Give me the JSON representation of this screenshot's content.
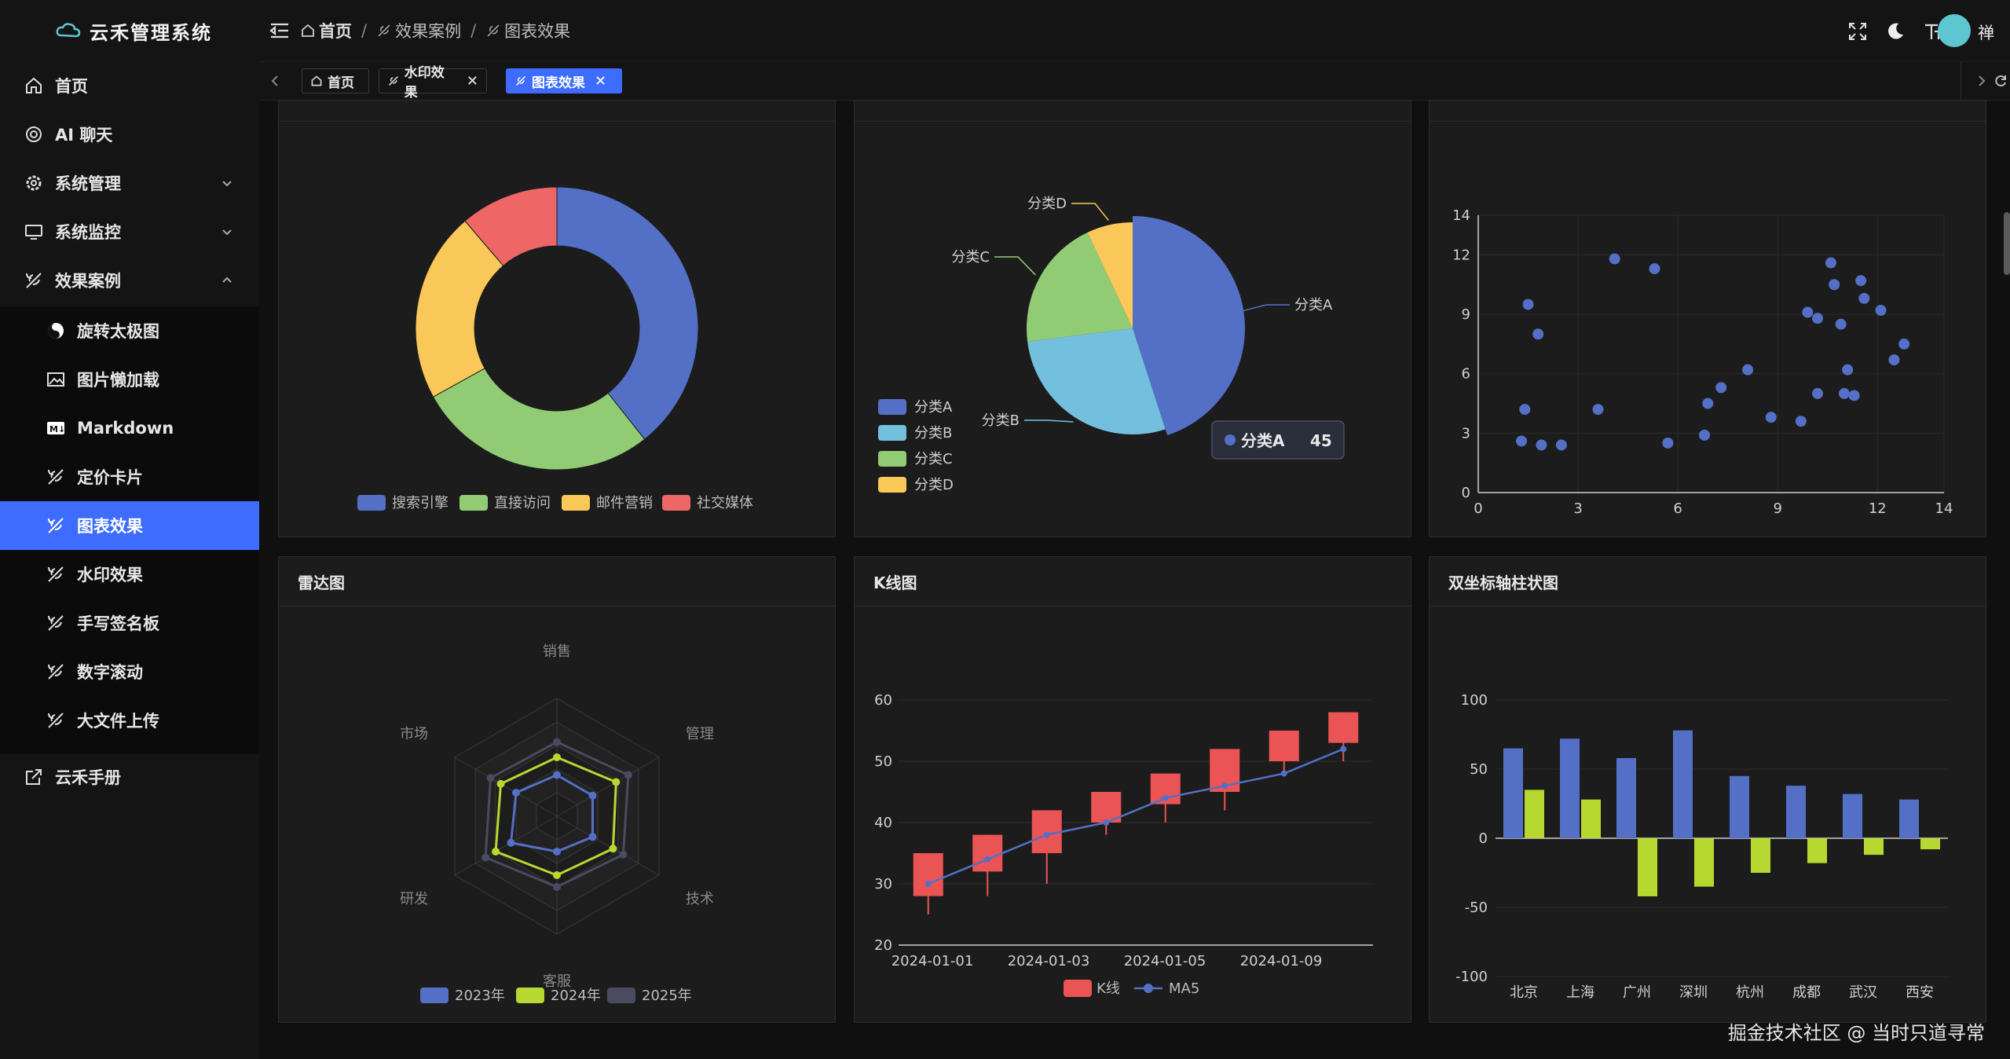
{
  "app": {
    "title": "云禾管理系统",
    "user": "禅"
  },
  "breadcrumb": [
    "首页",
    "效果案例",
    "图表效果"
  ],
  "sidebar": {
    "items": [
      {
        "label": "首页",
        "icon": "home-icon"
      },
      {
        "label": "AI 聊天",
        "icon": "ai-icon"
      },
      {
        "label": "系统管理",
        "icon": "gear-icon"
      },
      {
        "label": "系统监控",
        "icon": "monitor-icon"
      },
      {
        "label": "效果案例",
        "icon": "leaf-icon"
      },
      {
        "label": "旋转太极图",
        "icon": "taiji-icon"
      },
      {
        "label": "图片懒加载",
        "icon": "image-icon"
      },
      {
        "label": "Markdown",
        "icon": "markdown-icon"
      },
      {
        "label": "定价卡片",
        "icon": "leaf-icon"
      },
      {
        "label": "图表效果",
        "icon": "leaf-icon"
      },
      {
        "label": "水印效果",
        "icon": "leaf-icon"
      },
      {
        "label": "手写签名板",
        "icon": "leaf-icon"
      },
      {
        "label": "数字滚动",
        "icon": "leaf-icon"
      },
      {
        "label": "大文件上传",
        "icon": "leaf-icon"
      },
      {
        "label": "云禾手册",
        "icon": "external-link-icon"
      }
    ]
  },
  "tabs": [
    "首页",
    "水印效果",
    "图表效果"
  ],
  "cards": {
    "radar_title": "雷达图",
    "kline_title": "K线图",
    "dualbar_title": "双坐标轴柱状图"
  },
  "charts": {
    "donut": {
      "type": "pie",
      "categories": [
        "搜索引擎",
        "直接访问",
        "邮件营销",
        "社交媒体"
      ],
      "values": [
        1048,
        735,
        580,
        300
      ],
      "colors": [
        "#5470c6",
        "#91cc75",
        "#fac858",
        "#ee6666"
      ]
    },
    "pie": {
      "type": "pie",
      "categories": [
        "分类A",
        "分类B",
        "分类C",
        "分类D"
      ],
      "values": [
        45,
        28,
        20,
        7
      ],
      "colors": [
        "#5470c6",
        "#73c0de",
        "#91cc75",
        "#fac858"
      ],
      "tooltip": {
        "label": "分类A",
        "value": "45"
      }
    },
    "scatter": {
      "type": "scatter",
      "xlim": [
        0,
        14
      ],
      "ylim": [
        0,
        14
      ],
      "xticks": [
        "0",
        "3",
        "6",
        "9",
        "12",
        "14"
      ],
      "yticks": [
        "0",
        "3",
        "6",
        "9",
        "12",
        "14"
      ],
      "points": [
        [
          1.3,
          2.6
        ],
        [
          1.4,
          4.2
        ],
        [
          1.5,
          9.5
        ],
        [
          1.8,
          8.0
        ],
        [
          1.9,
          2.4
        ],
        [
          2.5,
          2.4
        ],
        [
          3.6,
          4.2
        ],
        [
          4.1,
          11.8
        ],
        [
          5.3,
          11.3
        ],
        [
          5.7,
          2.5
        ],
        [
          6.8,
          2.9
        ],
        [
          6.9,
          4.5
        ],
        [
          7.3,
          5.3
        ],
        [
          8.1,
          6.2
        ],
        [
          8.8,
          3.8
        ],
        [
          9.7,
          3.6
        ],
        [
          9.9,
          9.1
        ],
        [
          10.2,
          8.8
        ],
        [
          10.2,
          5.0
        ],
        [
          10.6,
          11.6
        ],
        [
          10.7,
          10.5
        ],
        [
          10.9,
          8.5
        ],
        [
          11.0,
          5.0
        ],
        [
          11.1,
          6.2
        ],
        [
          11.3,
          4.9
        ],
        [
          11.5,
          10.7
        ],
        [
          11.6,
          9.8
        ],
        [
          12.1,
          9.2
        ],
        [
          12.5,
          6.7
        ],
        [
          12.8,
          7.5
        ]
      ],
      "color": "#5470c6"
    },
    "radar": {
      "type": "radar",
      "indicators": [
        "销售",
        "管理",
        "技术",
        "客服",
        "研发",
        "市场"
      ],
      "series": [
        {
          "name": "2023年",
          "values": [
            0.35,
            0.35,
            0.35,
            0.3,
            0.45,
            0.4
          ],
          "color": "#5470c6"
        },
        {
          "name": "2024年",
          "values": [
            0.5,
            0.58,
            0.55,
            0.5,
            0.6,
            0.55
          ],
          "color": "#b7d831"
        },
        {
          "name": "2025年",
          "values": [
            0.63,
            0.7,
            0.65,
            0.6,
            0.7,
            0.65
          ],
          "color": "#4a4a60"
        }
      ]
    },
    "kline": {
      "type": "candlestick",
      "ylim": [
        20,
        60
      ],
      "yticks": [
        "20",
        "30",
        "40",
        "50",
        "60"
      ],
      "xlabels": [
        "2024-01-01",
        "2024-01-03",
        "2024-01-05",
        "2024-01-09"
      ],
      "candles": [
        [
          28,
          35,
          25,
          35
        ],
        [
          32,
          38,
          28,
          38
        ],
        [
          35,
          42,
          30,
          42
        ],
        [
          40,
          45,
          38,
          45
        ],
        [
          43,
          48,
          40,
          48
        ],
        [
          45,
          52,
          42,
          52
        ],
        [
          50,
          55,
          48,
          55
        ],
        [
          53,
          58,
          50,
          58
        ]
      ],
      "ma5": [
        30,
        34,
        38,
        40,
        44,
        46,
        48,
        52
      ],
      "legend": [
        "K线",
        "MA5"
      ],
      "up_color": "#eb5454",
      "ma_color": "#5470c6"
    },
    "dualbar": {
      "type": "bar",
      "categories": [
        "北京",
        "上海",
        "广州",
        "深圳",
        "杭州",
        "成都",
        "武汉",
        "西安"
      ],
      "ylim": [
        -100,
        100
      ],
      "yticks": [
        "100",
        "50",
        "0",
        "-50",
        "-100"
      ],
      "series": [
        {
          "values": [
            65,
            72,
            58,
            78,
            45,
            38,
            32,
            28
          ],
          "color": "#5470c6"
        },
        {
          "values": [
            35,
            28,
            -42,
            -35,
            -25,
            -18,
            -12,
            -8
          ],
          "color": "#b7d831"
        }
      ]
    }
  },
  "watermark": "掘金技术社区 @ 当时只道寻常"
}
